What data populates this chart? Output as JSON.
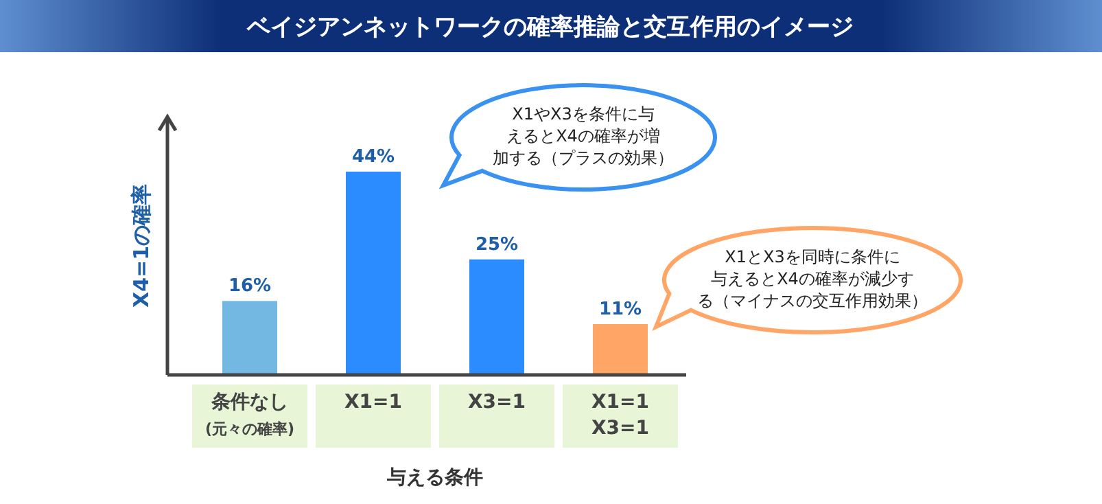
{
  "chart_data": {
    "type": "bar",
    "title": "ベイジアンネットワークの確率推論と交互作用のイメージ",
    "xlabel": "与える条件",
    "ylabel": "X4=1の確率",
    "categories": [
      "条件なし\n(元々の確率)",
      "X1=1",
      "X3=1",
      "X1=1\nX3=1"
    ],
    "values": [
      16,
      44,
      25,
      11
    ],
    "colors": [
      "#72b8e2",
      "#2b8cff",
      "#2b8cff",
      "#ffa566"
    ],
    "value_labels": [
      "16%",
      "44%",
      "25%",
      "11%"
    ],
    "annotations": [
      "X1やX3を条件に与えるとX4の確率が増加する（プラスの効果）",
      "X1とX3を同時に条件に与えるとX4の確率が減少する（マイナスの交互作用効果）"
    ]
  }
}
